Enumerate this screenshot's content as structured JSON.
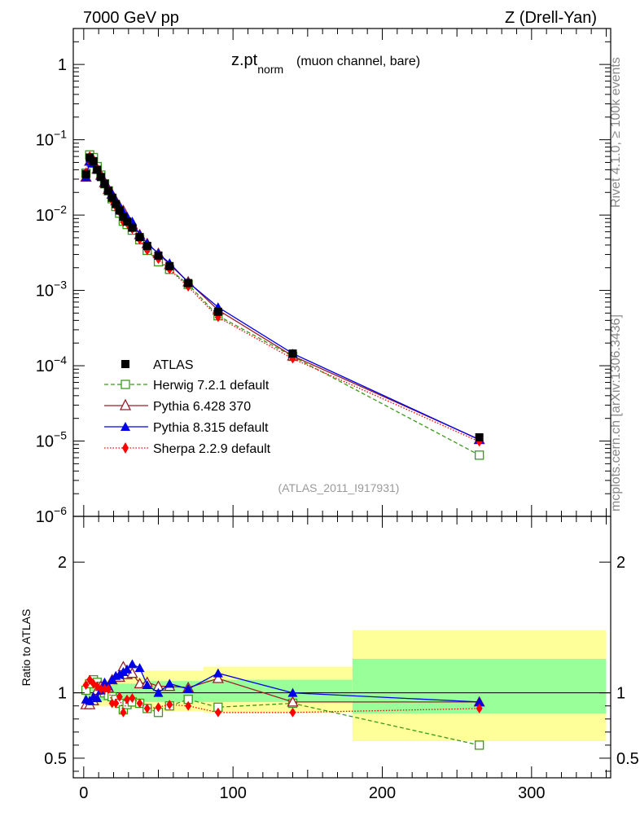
{
  "header": {
    "left": "7000 GeV pp",
    "right": "Z (Drell-Yan)"
  },
  "side_labels": {
    "rivet": "Rivet 4.1.0, ≥ 100k events",
    "mcplots": "mcplots.cern.ch [arXiv:1306.3436]"
  },
  "colors": {
    "atlas": "#000000",
    "herwig": "#3a9a1a",
    "pythia6": "#9a1e28",
    "pythia8": "#0000e6",
    "sherpa": "#ff0000",
    "band_green": "#99ff99",
    "band_yellow": "#ffff99"
  },
  "chart_data": [
    {
      "type": "line",
      "title": "z.pt",
      "title_sub": "norm",
      "title_suffix": "(muon channel, bare)",
      "analysis_label": "(ATLAS_2011_I917931)",
      "yscale": "log",
      "ylim": [
        1e-06,
        3
      ],
      "xlim": [
        -7,
        353
      ],
      "y_tick_labels": [
        {
          "base": "1",
          "exp": ""
        },
        {
          "base": "10",
          "exp": "−1"
        },
        {
          "base": "10",
          "exp": "−2"
        },
        {
          "base": "10",
          "exp": "−3"
        },
        {
          "base": "10",
          "exp": "−4"
        },
        {
          "base": "10",
          "exp": "−5"
        },
        {
          "base": "10",
          "exp": "−6"
        }
      ],
      "y_tick_values": [
        1,
        0.1,
        0.01,
        0.001,
        0.0001,
        1e-05,
        1e-06
      ],
      "legend_position": "bottom-left",
      "x": [
        1.5,
        4,
        6.5,
        9,
        11.5,
        14,
        16.5,
        19,
        21.5,
        24,
        26.5,
        29,
        32.5,
        37.5,
        42.5,
        50,
        57.5,
        70,
        90,
        140,
        265
      ],
      "series": [
        {
          "name": "ATLAS",
          "role": "data",
          "values": [
            0.035,
            0.058,
            0.052,
            0.04,
            0.032,
            0.026,
            0.021,
            0.017,
            0.014,
            0.0115,
            0.0095,
            0.0082,
            0.0068,
            0.0051,
            0.0039,
            0.0029,
            0.0021,
            0.00125,
            0.00052,
            0.000145,
            1.12e-05
          ]
        },
        {
          "name": "Herwig 7.2.1 default",
          "role": "herwig",
          "values": [
            0.036,
            0.063,
            0.058,
            0.044,
            0.034,
            0.026,
            0.021,
            0.0165,
            0.013,
            0.0106,
            0.0083,
            0.0075,
            0.0063,
            0.0047,
            0.0034,
            0.0024,
            0.0019,
            0.0012,
            0.00046,
            0.000133,
            6.5e-06
          ]
        },
        {
          "name": "Pythia 6.428 370",
          "role": "pythia6",
          "values": [
            0.032,
            0.052,
            0.049,
            0.041,
            0.034,
            0.027,
            0.022,
            0.019,
            0.0155,
            0.013,
            0.0115,
            0.0093,
            0.0075,
            0.0055,
            0.0042,
            0.0031,
            0.0022,
            0.0013,
            0.00055,
            0.000135,
            1.05e-05
          ]
        },
        {
          "name": "Pythia 8.315 default",
          "role": "pythia8",
          "values": [
            0.032,
            0.052,
            0.049,
            0.04,
            0.033,
            0.028,
            0.023,
            0.019,
            0.0155,
            0.0132,
            0.011,
            0.0095,
            0.0082,
            0.0055,
            0.0042,
            0.0031,
            0.0023,
            0.00128,
            0.0006,
            0.000145,
            1.04e-05
          ]
        },
        {
          "name": "Sherpa 2.2.9 default",
          "role": "sherpa",
          "values": [
            0.037,
            0.061,
            0.055,
            0.042,
            0.033,
            0.027,
            0.022,
            0.0158,
            0.013,
            0.0112,
            0.0081,
            0.0078,
            0.0065,
            0.0047,
            0.0034,
            0.0026,
            0.0019,
            0.00112,
            0.00044,
            0.000124,
            9.8e-06
          ]
        }
      ]
    },
    {
      "type": "line",
      "ylabel": "Ratio to ATLAS",
      "ylim": [
        0.35,
        2.35
      ],
      "xlim": [
        -7,
        353
      ],
      "y_tick_values": [
        0.5,
        1,
        2
      ],
      "y_tick_labels": [
        "0.5",
        "1",
        "2"
      ],
      "x_tick_values": [
        0,
        100,
        200,
        300
      ],
      "x_tick_labels": [
        "0",
        "100",
        "200",
        "300"
      ],
      "x": [
        1.5,
        4,
        6.5,
        9,
        11.5,
        14,
        16.5,
        19,
        21.5,
        24,
        26.5,
        29,
        32.5,
        37.5,
        42.5,
        50,
        57.5,
        70,
        90,
        140,
        265
      ],
      "bands": [
        {
          "x0": 0,
          "x1": 20,
          "green": [
            0.94,
            1.06
          ],
          "yellow": [
            0.9,
            1.1
          ]
        },
        {
          "x0": 20,
          "x1": 40,
          "green": [
            0.94,
            1.07
          ],
          "yellow": [
            0.88,
            1.12
          ]
        },
        {
          "x0": 40,
          "x1": 80,
          "green": [
            0.93,
            1.09
          ],
          "yellow": [
            0.86,
            1.17
          ]
        },
        {
          "x0": 80,
          "x1": 180,
          "green": [
            0.93,
            1.1
          ],
          "yellow": [
            0.85,
            1.2
          ]
        },
        {
          "x0": 180,
          "x1": 350,
          "green": [
            0.84,
            1.26
          ],
          "yellow": [
            0.63,
            1.48
          ]
        }
      ],
      "series": [
        {
          "name": "Herwig 7.2.1 default",
          "role": "herwig",
          "values": [
            1.02,
            1.07,
            1.1,
            1.08,
            1.05,
            1.0,
            0.98,
            0.97,
            0.95,
            0.92,
            0.87,
            0.91,
            0.93,
            0.92,
            0.88,
            0.85,
            0.9,
            0.95,
            0.89,
            0.92,
            0.6
          ]
        },
        {
          "name": "Pythia 6.428 370",
          "role": "pythia6",
          "values": [
            0.91,
            0.91,
            0.94,
            1.02,
            1.05,
            1.05,
            1.04,
            1.1,
            1.12,
            1.12,
            1.2,
            1.14,
            1.15,
            1.07,
            1.08,
            1.05,
            1.05,
            1.04,
            1.11,
            0.93,
            0.93
          ]
        },
        {
          "name": "Pythia 8.315 default",
          "role": "pythia8",
          "values": [
            0.95,
            0.94,
            0.97,
            0.96,
            1.02,
            1.08,
            1.05,
            1.1,
            1.13,
            1.14,
            1.16,
            1.18,
            1.22,
            1.19,
            1.06,
            1.0,
            1.07,
            1.03,
            1.15,
            1.0,
            0.93
          ]
        },
        {
          "name": "Sherpa 2.2.9 default",
          "role": "sherpa",
          "values": [
            1.06,
            1.1,
            1.07,
            1.05,
            1.03,
            1.03,
            1.03,
            0.92,
            0.92,
            0.97,
            0.85,
            0.95,
            0.96,
            0.92,
            0.88,
            0.89,
            0.91,
            0.9,
            0.85,
            0.85,
            0.88
          ]
        }
      ]
    }
  ]
}
